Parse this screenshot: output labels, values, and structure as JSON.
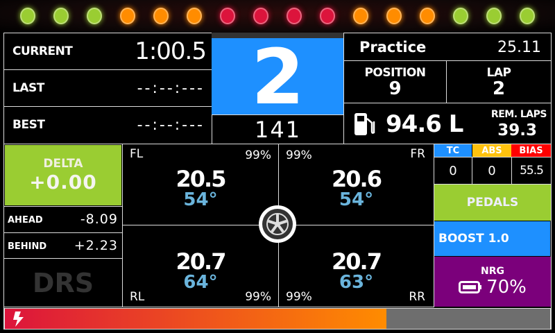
{
  "shift_lights": [
    "#9acd32",
    "#9acd32",
    "#9acd32",
    "#ff8c00",
    "#ff8c00",
    "#ff8c00",
    "#dc143c",
    "#dc143c",
    "#dc143c",
    "#dc143c",
    "#ff8c00",
    "#ff8c00",
    "#ff8c00",
    "#9acd32",
    "#9acd32",
    "#9acd32"
  ],
  "times": {
    "current_label": "CURRENT",
    "current": "1:00.5",
    "last_label": "LAST",
    "last": "--:--:---",
    "best_label": "BEST",
    "best": "--:--:---"
  },
  "gear": {
    "value": "2",
    "rpm": "141"
  },
  "session": {
    "name": "Practice",
    "time": "25.11",
    "position_label": "POSITION",
    "position": "9",
    "lap_label": "LAP",
    "lap": "2"
  },
  "fuel": {
    "value": "94.6 L",
    "rem_laps_label": "REM. LAPS",
    "rem_laps": "39.3",
    "icon": "fuel-pump-icon"
  },
  "delta": {
    "label": "DELTA",
    "value": "+0.00",
    "ahead_label": "AHEAD",
    "ahead": "-8.09",
    "behind_label": "BEHIND",
    "behind": "+2.23",
    "drs": "DRS"
  },
  "tyres": {
    "fl": {
      "label": "FL",
      "wear": "99%",
      "pressure": "20.5",
      "temp": "54°"
    },
    "fr": {
      "label": "FR",
      "wear": "99%",
      "pressure": "20.6",
      "temp": "54°"
    },
    "rl": {
      "label": "RL",
      "wear": "99%",
      "pressure": "20.7",
      "temp": "64°"
    },
    "rr": {
      "label": "RR",
      "wear": "99%",
      "pressure": "20.7",
      "temp": "63°"
    }
  },
  "aids": {
    "tc_label": "TC",
    "tc": "0",
    "abs_label": "ABS",
    "abs": "0",
    "bias_label": "BIAS",
    "bias": "55.5"
  },
  "pedals_label": "PEDALS",
  "boost": "BOOST 1.0",
  "nrg": {
    "label": "NRG",
    "value": "70%"
  },
  "energy_bar": {
    "percent": 70
  },
  "colors": {
    "green": "#9acd32",
    "blue": "#1e90ff",
    "purple": "#7b007b",
    "tc": "#1e90ff",
    "abs": "#ffc20e",
    "bias": "#ff0000"
  }
}
